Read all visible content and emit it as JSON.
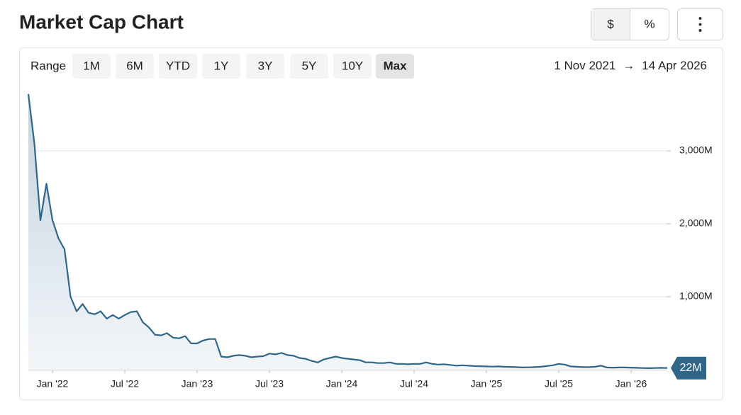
{
  "header": {
    "title": "Market Cap Chart"
  },
  "controls": {
    "units": [
      {
        "label": "$",
        "selected": true
      },
      {
        "label": "%",
        "selected": false
      }
    ],
    "range_label": "Range",
    "ranges": [
      {
        "label": "1M",
        "enabled": true,
        "selected": false
      },
      {
        "label": "6M",
        "enabled": true,
        "selected": false
      },
      {
        "label": "YTD",
        "enabled": true,
        "selected": false
      },
      {
        "label": "1Y",
        "enabled": true,
        "selected": false
      },
      {
        "label": "3Y",
        "enabled": true,
        "selected": false
      },
      {
        "label": "5Y",
        "enabled": false,
        "selected": false
      },
      {
        "label": "10Y",
        "enabled": false,
        "selected": false
      },
      {
        "label": "Max",
        "enabled": true,
        "selected": true
      }
    ],
    "date_from": "1 Nov 2021",
    "separator": "→",
    "date_to": "14 Apr 2026"
  },
  "chart_data": {
    "type": "area",
    "color": "#2f6689",
    "categories": [
      null,
      null,
      null,
      null,
      "Jan '22",
      null,
      null,
      null,
      null,
      null,
      null,
      null,
      null,
      null,
      null,
      null,
      "Jul '22",
      null,
      null,
      null,
      null,
      null,
      null,
      null,
      null,
      null,
      null,
      null,
      "Jan '23",
      null,
      null,
      null,
      null,
      null,
      null,
      null,
      null,
      null,
      null,
      null,
      "Jul '23",
      null,
      null,
      null,
      null,
      null,
      null,
      null,
      null,
      null,
      null,
      null,
      "Jan '24",
      null,
      null,
      null,
      null,
      null,
      null,
      null,
      null,
      null,
      null,
      null,
      "Jul '24",
      null,
      null,
      null,
      null,
      null,
      null,
      null,
      null,
      null,
      null,
      null,
      "Jan '25",
      null,
      null,
      null,
      null,
      null,
      null,
      null,
      null,
      null,
      null,
      null,
      "Jul '25",
      null,
      null,
      null,
      null,
      null,
      null,
      null,
      null,
      null,
      null,
      null,
      "Jan '26",
      null,
      null,
      null,
      null,
      null,
      null
    ],
    "values": [
      3780,
      3100,
      2050,
      2550,
      2050,
      1800,
      1650,
      1000,
      800,
      900,
      780,
      760,
      800,
      700,
      750,
      700,
      750,
      790,
      800,
      650,
      580,
      480,
      470,
      500,
      440,
      430,
      460,
      360,
      360,
      400,
      420,
      420,
      180,
      170,
      190,
      200,
      190,
      170,
      180,
      185,
      220,
      210,
      230,
      200,
      190,
      160,
      150,
      120,
      100,
      140,
      160,
      180,
      160,
      150,
      140,
      130,
      100,
      100,
      90,
      90,
      100,
      80,
      80,
      75,
      80,
      80,
      100,
      80,
      70,
      75,
      65,
      55,
      60,
      55,
      50,
      48,
      45,
      42,
      45,
      40,
      38,
      35,
      30,
      32,
      35,
      40,
      50,
      60,
      80,
      70,
      45,
      40,
      35,
      35,
      40,
      55,
      30,
      28,
      30,
      30,
      28,
      25,
      22,
      20,
      22,
      25,
      22
    ],
    "value_labels": [
      null,
      null,
      null,
      null,
      null,
      null,
      null,
      null,
      null,
      null,
      null,
      null,
      null,
      null,
      null,
      null,
      null,
      null,
      null,
      null,
      null,
      null,
      null,
      null,
      null,
      null,
      null,
      null,
      null,
      null,
      null,
      null,
      null,
      null,
      null,
      null,
      null,
      null,
      null,
      null,
      null,
      null,
      null,
      null,
      null,
      null,
      null,
      null,
      null,
      null,
      null,
      null,
      null,
      null,
      null,
      null,
      null,
      null,
      null,
      null,
      null,
      null,
      null,
      null,
      null,
      null,
      null,
      null,
      null,
      null,
      null,
      null,
      null,
      null,
      null,
      null,
      null,
      null,
      null,
      null,
      null,
      null,
      null,
      null,
      null,
      null,
      null,
      null,
      null,
      null,
      null,
      null,
      null,
      null,
      null,
      null,
      null,
      null,
      null,
      null,
      null,
      null,
      null,
      null,
      null,
      null,
      "22M"
    ],
    "ylim": [
      0,
      3850
    ],
    "yticks": [
      {
        "value": 1000,
        "label": "1,000M"
      },
      {
        "value": 2000,
        "label": "2,000M"
      },
      {
        "value": 3000,
        "label": "3,000M"
      }
    ],
    "grid": true
  }
}
